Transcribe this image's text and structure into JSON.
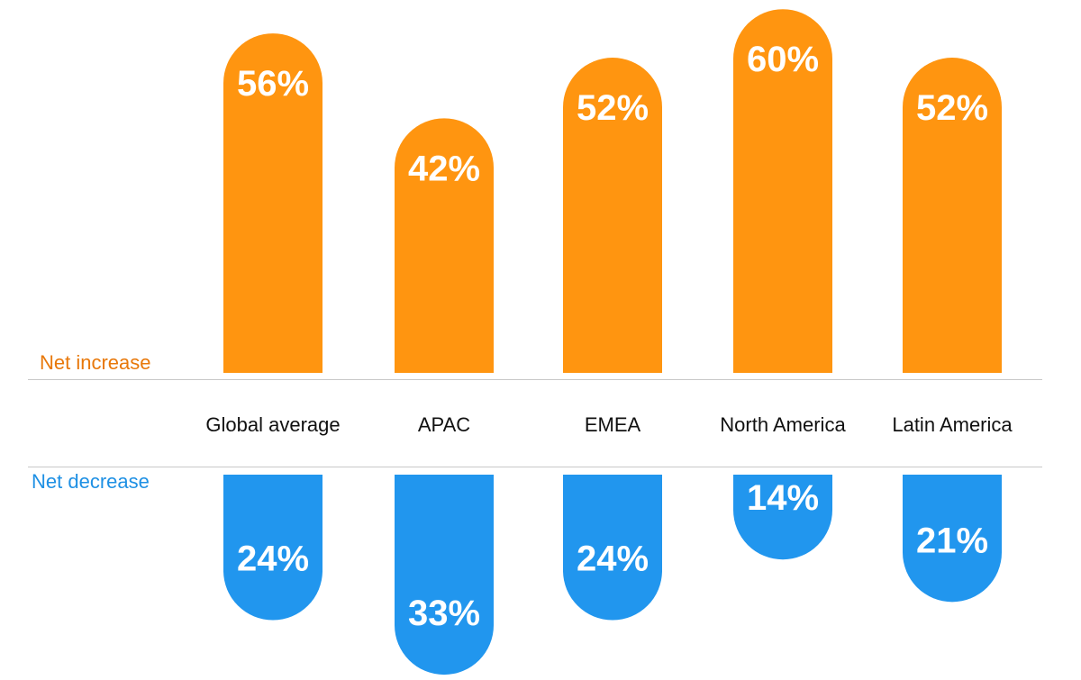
{
  "colors": {
    "increase": "#FF9510",
    "decrease": "#2196EE",
    "increase_text": "#E8780A",
    "decrease_text": "#1E90E4",
    "bar_label": "#FFFFFF",
    "category_text": "#111111"
  },
  "chart_data": {
    "type": "bar",
    "categories": [
      "Global average",
      "APAC",
      "EMEA",
      "North America",
      "Latin America"
    ],
    "series": [
      {
        "name": "Net increase",
        "values": [
          56,
          42,
          52,
          60,
          52
        ],
        "labels": [
          "56%",
          "42%",
          "52%",
          "60%",
          "52%"
        ]
      },
      {
        "name": "Net decrease",
        "values": [
          24,
          33,
          24,
          14,
          21
        ],
        "labels": [
          "24%",
          "33%",
          "24%",
          "14%",
          "21%"
        ]
      }
    ],
    "title": "",
    "xlabel": "",
    "ylabel": "",
    "grid": false,
    "ylim": [
      0,
      60
    ]
  }
}
